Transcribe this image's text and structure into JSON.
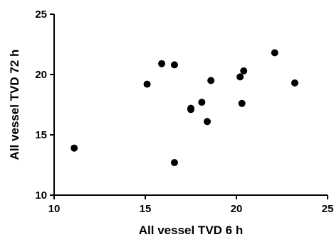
{
  "chart_data": {
    "type": "scatter",
    "xlabel": "All vessel TVD 6 h",
    "ylabel": "All vessel TVD 72 h",
    "xlim": [
      10,
      25
    ],
    "ylim": [
      10,
      25
    ],
    "xticks": [
      10,
      15,
      20,
      25
    ],
    "yticks": [
      10,
      15,
      20,
      25
    ],
    "grid": false,
    "point_color": "#000000",
    "points": [
      {
        "x": 11.1,
        "y": 13.9
      },
      {
        "x": 15.1,
        "y": 19.2
      },
      {
        "x": 15.9,
        "y": 20.9
      },
      {
        "x": 16.6,
        "y": 20.8
      },
      {
        "x": 16.6,
        "y": 12.7
      },
      {
        "x": 17.5,
        "y": 17.2
      },
      {
        "x": 17.5,
        "y": 17.1
      },
      {
        "x": 18.1,
        "y": 17.7
      },
      {
        "x": 18.4,
        "y": 16.1
      },
      {
        "x": 18.6,
        "y": 19.5
      },
      {
        "x": 20.2,
        "y": 19.8
      },
      {
        "x": 20.4,
        "y": 20.3
      },
      {
        "x": 20.3,
        "y": 17.6
      },
      {
        "x": 22.1,
        "y": 21.8
      },
      {
        "x": 23.2,
        "y": 19.3
      }
    ]
  }
}
